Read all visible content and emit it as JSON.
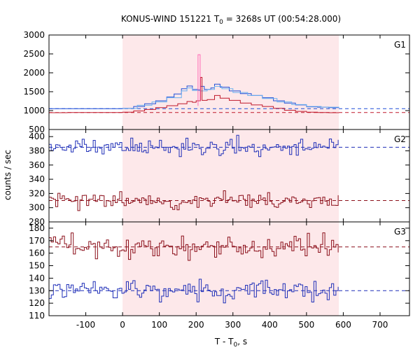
{
  "chart_data": {
    "type": "line",
    "title_main": "KONUS-WIND 151221 T",
    "title_sub": "0",
    "title_rest": " = 3268s UT (00:54:28.000)",
    "ylabel": "counts / sec",
    "xlabel_main": "T - T",
    "xlabel_sub": "0",
    "xlabel_rest": ", s",
    "xlim": [
      -200,
      780
    ],
    "xticks": [
      -100,
      0,
      100,
      200,
      300,
      400,
      500,
      600,
      700
    ],
    "highlight_interval": [
      0,
      588
    ],
    "highlight_color": "#fde8ea",
    "panels": [
      {
        "name": "G1",
        "ylim": [
          500,
          3000
        ],
        "yticks": [
          500,
          1000,
          1500,
          2000,
          2500,
          3000
        ],
        "series": [
          {
            "color": "#1f4fd8",
            "background": 1050,
            "points": [
              [
                -200,
                1050
              ],
              [
                -150,
                1052
              ],
              [
                -100,
                1050
              ],
              [
                -50,
                1050
              ],
              [
                0,
                1060
              ],
              [
                30,
                1110
              ],
              [
                60,
                1180
              ],
              [
                90,
                1260
              ],
              [
                120,
                1360
              ],
              [
                140,
                1440
              ],
              [
                160,
                1580
              ],
              [
                175,
                1650
              ],
              [
                190,
                1560
              ],
              [
                205,
                1550
              ],
              [
                212,
                1640
              ],
              [
                222,
                1560
              ],
              [
                240,
                1600
              ],
              [
                250,
                1700
              ],
              [
                265,
                1620
              ],
              [
                290,
                1520
              ],
              [
                320,
                1450
              ],
              [
                350,
                1400
              ],
              [
                380,
                1340
              ],
              [
                410,
                1260
              ],
              [
                440,
                1200
              ],
              [
                470,
                1150
              ],
              [
                500,
                1100
              ],
              [
                530,
                1090
              ],
              [
                560,
                1080
              ],
              [
                588,
                1075
              ]
            ]
          },
          {
            "color": "#6ab0f0",
            "points": [
              [
                0,
                1055
              ],
              [
                40,
                1140
              ],
              [
                80,
                1230
              ],
              [
                120,
                1340
              ],
              [
                160,
                1520
              ],
              [
                175,
                1600
              ],
              [
                190,
                1530
              ],
              [
                210,
                1520
              ],
              [
                230,
                1560
              ],
              [
                250,
                1640
              ],
              [
                270,
                1580
              ],
              [
                300,
                1480
              ],
              [
                340,
                1400
              ],
              [
                380,
                1320
              ],
              [
                420,
                1230
              ],
              [
                460,
                1160
              ],
              [
                500,
                1110
              ],
              [
                540,
                1090
              ],
              [
                588,
                1080
              ]
            ]
          },
          {
            "color": "#c0182a",
            "background": 950,
            "points": [
              [
                -200,
                945
              ],
              [
                -150,
                950
              ],
              [
                -100,
                948
              ],
              [
                -50,
                950
              ],
              [
                0,
                960
              ],
              [
                30,
                990
              ],
              [
                60,
                1030
              ],
              [
                90,
                1080
              ],
              [
                120,
                1130
              ],
              [
                150,
                1180
              ],
              [
                175,
                1240
              ],
              [
                190,
                1220
              ],
              [
                200,
                1260
              ],
              [
                212,
                1880
              ],
              [
                216,
                1270
              ],
              [
                230,
                1290
              ],
              [
                250,
                1400
              ],
              [
                265,
                1330
              ],
              [
                290,
                1270
              ],
              [
                320,
                1200
              ],
              [
                350,
                1150
              ],
              [
                380,
                1110
              ],
              [
                410,
                1060
              ],
              [
                440,
                1010
              ],
              [
                470,
                980
              ],
              [
                500,
                960
              ],
              [
                530,
                950
              ],
              [
                560,
                945
              ],
              [
                588,
                940
              ]
            ]
          },
          {
            "color": "#ff69b4",
            "spike": [
              208,
              2480
            ]
          }
        ]
      },
      {
        "name": "G2",
        "ylim": [
          280,
          410
        ],
        "yticks": [
          280,
          300,
          320,
          340,
          360,
          380,
          400
        ],
        "series": [
          {
            "color": "#1f2fb8",
            "mean": 385,
            "amplitude": 9,
            "seed": 11
          },
          {
            "color": "#8b0f1a",
            "mean": 310,
            "amplitude": 9,
            "seed": 23
          }
        ]
      },
      {
        "name": "G3",
        "ylim": [
          110,
          185
        ],
        "yticks": [
          110,
          120,
          130,
          140,
          150,
          160,
          170,
          180
        ],
        "series": [
          {
            "color": "#8b0f1a",
            "mean": 165,
            "amplitude": 7,
            "seed": 37
          },
          {
            "color": "#1f2fb8",
            "mean": 130,
            "amplitude": 6,
            "seed": 51
          }
        ]
      }
    ]
  }
}
